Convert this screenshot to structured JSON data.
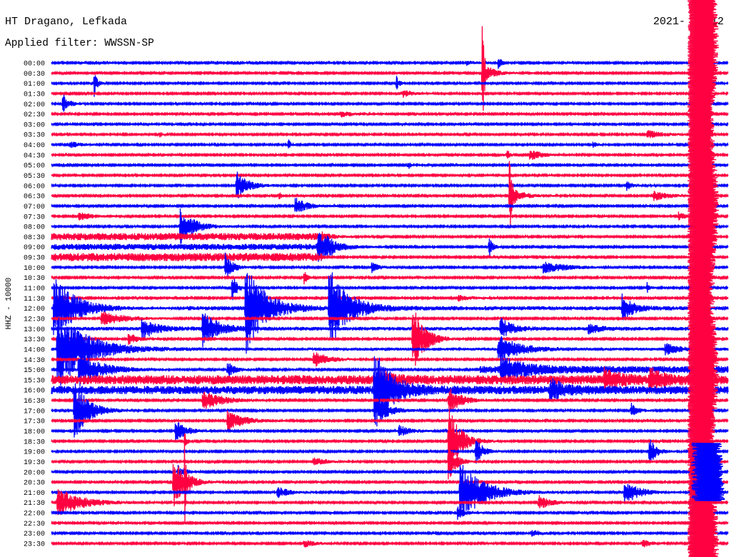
{
  "chart_data": {
    "type": "line",
    "title": "HT Dragano, Lefkada",
    "subtitle": "Applied filter: WWSSN-SP",
    "date_left": "2021-",
    "date_right": "12",
    "ylabel": "HHZ - 10000",
    "row_minutes": 30,
    "trace_colors": [
      "#0000ff",
      "#ff0040"
    ],
    "rows": [
      "00:00",
      "00:30",
      "01:00",
      "01:30",
      "02:00",
      "02:30",
      "03:00",
      "03:30",
      "04:00",
      "04:30",
      "05:00",
      "05:30",
      "06:00",
      "06:30",
      "07:00",
      "07:30",
      "08:00",
      "08:30",
      "09:00",
      "09:30",
      "10:00",
      "10:30",
      "11:00",
      "11:30",
      "12:00",
      "12:30",
      "13:00",
      "13:30",
      "14:00",
      "14:30",
      "15:00",
      "15:30",
      "16:00",
      "16:30",
      "17:00",
      "17:30",
      "18:00",
      "18:30",
      "19:00",
      "19:30",
      "20:00",
      "20:30",
      "21:00",
      "21:30",
      "22:00",
      "22:30",
      "23:00",
      "23:30"
    ],
    "base_noise": 0.08,
    "noise": [
      {
        "row": "08:30",
        "t_start": 0,
        "t_end": 12,
        "level": 0.35
      },
      {
        "row": "09:00",
        "t_start": 0,
        "t_end": 12.5,
        "level": 0.3
      },
      {
        "row": "09:30",
        "t_start": 0,
        "t_end": 12,
        "level": 0.4
      },
      {
        "row": "12:00",
        "t_start": 6,
        "t_end": 30,
        "level": 0.2
      },
      {
        "row": "13:00",
        "t_start": 0,
        "t_end": 30,
        "level": 0.18
      },
      {
        "row": "14:00",
        "t_start": 0,
        "t_end": 30,
        "level": 0.15
      },
      {
        "row": "15:00",
        "t_start": 19,
        "t_end": 30,
        "level": 0.35
      },
      {
        "row": "15:30",
        "t_start": 0,
        "t_end": 30,
        "level": 0.45
      },
      {
        "row": "16:00",
        "t_start": 0,
        "t_end": 30,
        "level": 0.4
      }
    ],
    "events": [
      {
        "row": "00:00",
        "t": 19.8,
        "amp": 0.7,
        "dur": 0.15
      },
      {
        "row": "00:00",
        "t": 18.4,
        "amp": 0.25,
        "dur": 0.3
      },
      {
        "row": "00:30",
        "t": 19.1,
        "amp": 7.0,
        "dur": 0.05
      },
      {
        "row": "00:30",
        "t": 19.1,
        "amp": 1.2,
        "dur": 0.4
      },
      {
        "row": "01:00",
        "t": 1.9,
        "amp": 1.3,
        "dur": 0.12
      },
      {
        "row": "01:00",
        "t": 15.3,
        "amp": 0.7,
        "dur": 0.12
      },
      {
        "row": "01:30",
        "t": 15.6,
        "amp": 0.35,
        "dur": 0.4
      },
      {
        "row": "02:00",
        "t": 0.5,
        "amp": 1.0,
        "dur": 0.25
      },
      {
        "row": "02:30",
        "t": 12.8,
        "amp": 0.3,
        "dur": 0.6
      },
      {
        "row": "03:30",
        "t": 4.8,
        "amp": 0.3,
        "dur": 0.1
      },
      {
        "row": "03:30",
        "t": 26.4,
        "amp": 0.4,
        "dur": 0.7
      },
      {
        "row": "04:00",
        "t": 0.8,
        "amp": 0.3,
        "dur": 0.5
      },
      {
        "row": "04:00",
        "t": 10.5,
        "amp": 0.55,
        "dur": 0.1
      },
      {
        "row": "04:00",
        "t": 24.0,
        "amp": 0.3,
        "dur": 0.2
      },
      {
        "row": "04:30",
        "t": 20.2,
        "amp": 0.85,
        "dur": 0.08
      },
      {
        "row": "04:30",
        "t": 21.2,
        "amp": 0.55,
        "dur": 0.5
      },
      {
        "row": "05:00",
        "t": 15.8,
        "amp": 0.5,
        "dur": 0.1
      },
      {
        "row": "06:00",
        "t": 8.2,
        "amp": 1.4,
        "dur": 0.5
      },
      {
        "row": "06:00",
        "t": 25.5,
        "amp": 0.5,
        "dur": 0.2
      },
      {
        "row": "06:30",
        "t": 10.1,
        "amp": 0.4,
        "dur": 0.1
      },
      {
        "row": "06:30",
        "t": 20.3,
        "amp": 3.7,
        "dur": 0.08
      },
      {
        "row": "06:30",
        "t": 20.3,
        "amp": 1.0,
        "dur": 0.5
      },
      {
        "row": "06:30",
        "t": 26.7,
        "amp": 0.5,
        "dur": 0.6
      },
      {
        "row": "07:00",
        "t": 10.8,
        "amp": 0.85,
        "dur": 0.5
      },
      {
        "row": "07:30",
        "t": 1.2,
        "amp": 0.4,
        "dur": 0.6
      },
      {
        "row": "07:30",
        "t": 27.8,
        "amp": 0.4,
        "dur": 0.3
      },
      {
        "row": "08:00",
        "t": 5.7,
        "amp": 1.75,
        "dur": 0.6
      },
      {
        "row": "08:30",
        "t": 12.0,
        "amp": 0.45,
        "dur": 0.5
      },
      {
        "row": "09:00",
        "t": 11.8,
        "amp": 1.5,
        "dur": 0.7
      },
      {
        "row": "09:00",
        "t": 19.4,
        "amp": 1.0,
        "dur": 0.15
      },
      {
        "row": "10:00",
        "t": 7.7,
        "amp": 1.4,
        "dur": 0.3
      },
      {
        "row": "10:00",
        "t": 14.2,
        "amp": 0.55,
        "dur": 0.3
      },
      {
        "row": "10:00",
        "t": 21.8,
        "amp": 0.55,
        "dur": 1.0
      },
      {
        "row": "10:30",
        "t": 11.2,
        "amp": 1.0,
        "dur": 0.1
      },
      {
        "row": "11:00",
        "t": 8.0,
        "amp": 1.4,
        "dur": 0.2
      },
      {
        "row": "11:00",
        "t": 26.4,
        "amp": 0.55,
        "dur": 0.1
      },
      {
        "row": "11:30",
        "t": 18.0,
        "amp": 0.3,
        "dur": 0.6
      },
      {
        "row": "12:00",
        "t": 0.1,
        "amp": 3.1,
        "dur": 1.0
      },
      {
        "row": "12:00",
        "t": 8.6,
        "amp": 4.5,
        "dur": 0.8
      },
      {
        "row": "12:00",
        "t": 12.3,
        "amp": 4.0,
        "dur": 0.8
      },
      {
        "row": "12:00",
        "t": 25.3,
        "amp": 1.4,
        "dur": 0.4
      },
      {
        "row": "12:30",
        "t": 2.2,
        "amp": 0.7,
        "dur": 1.0
      },
      {
        "row": "13:00",
        "t": 4.0,
        "amp": 1.0,
        "dur": 0.6
      },
      {
        "row": "13:00",
        "t": 6.7,
        "amp": 1.75,
        "dur": 0.6
      },
      {
        "row": "13:00",
        "t": 19.9,
        "amp": 1.0,
        "dur": 0.5
      },
      {
        "row": "13:00",
        "t": 23.8,
        "amp": 0.55,
        "dur": 0.4
      },
      {
        "row": "13:30",
        "t": 3.4,
        "amp": 0.55,
        "dur": 0.5
      },
      {
        "row": "13:30",
        "t": 16.0,
        "amp": 3.5,
        "dur": 0.5
      },
      {
        "row": "14:00",
        "t": 0.25,
        "amp": 4.0,
        "dur": 1.2
      },
      {
        "row": "14:00",
        "t": 19.8,
        "amp": 1.4,
        "dur": 0.8
      },
      {
        "row": "14:00",
        "t": 27.2,
        "amp": 0.55,
        "dur": 0.5
      },
      {
        "row": "14:30",
        "t": 11.6,
        "amp": 0.85,
        "dur": 0.6
      },
      {
        "row": "15:00",
        "t": 1.2,
        "amp": 1.75,
        "dur": 1.0
      },
      {
        "row": "15:00",
        "t": 7.8,
        "amp": 0.85,
        "dur": 0.3
      },
      {
        "row": "15:00",
        "t": 19.9,
        "amp": 1.25,
        "dur": 0.9
      },
      {
        "row": "15:30",
        "t": 14.5,
        "amp": 0.85,
        "dur": 0.5
      },
      {
        "row": "15:30",
        "t": 24.5,
        "amp": 1.0,
        "dur": 0.6
      },
      {
        "row": "15:30",
        "t": 26.5,
        "amp": 1.0,
        "dur": 0.6
      },
      {
        "row": "16:00",
        "t": 14.3,
        "amp": 4.0,
        "dur": 0.7
      },
      {
        "row": "16:00",
        "t": 22.1,
        "amp": 1.0,
        "dur": 0.6
      },
      {
        "row": "16:30",
        "t": 6.7,
        "amp": 1.0,
        "dur": 0.8
      },
      {
        "row": "16:30",
        "t": 17.6,
        "amp": 1.4,
        "dur": 0.5
      },
      {
        "row": "17:00",
        "t": 1.0,
        "amp": 3.0,
        "dur": 0.6
      },
      {
        "row": "17:00",
        "t": 14.5,
        "amp": 1.25,
        "dur": 0.5
      },
      {
        "row": "17:00",
        "t": 25.7,
        "amp": 0.7,
        "dur": 0.3
      },
      {
        "row": "17:30",
        "t": 7.8,
        "amp": 1.0,
        "dur": 0.7
      },
      {
        "row": "18:00",
        "t": 5.5,
        "amp": 1.25,
        "dur": 0.4
      },
      {
        "row": "18:00",
        "t": 15.4,
        "amp": 0.55,
        "dur": 0.5
      },
      {
        "row": "18:30",
        "t": 5.9,
        "amp": 1.0,
        "dur": 0.1
      },
      {
        "row": "18:30",
        "t": 17.6,
        "amp": 3.5,
        "dur": 0.5
      },
      {
        "row": "19:00",
        "t": 18.8,
        "amp": 1.4,
        "dur": 0.3
      },
      {
        "row": "19:00",
        "t": 26.5,
        "amp": 1.4,
        "dur": 0.3
      },
      {
        "row": "19:30",
        "t": 11.6,
        "amp": 0.4,
        "dur": 0.6
      },
      {
        "row": "19:30",
        "t": 17.6,
        "amp": 2.1,
        "dur": 0.3
      },
      {
        "row": "20:00",
        "t": 5.6,
        "amp": 0.7,
        "dur": 0.3
      },
      {
        "row": "20:30",
        "t": 5.4,
        "amp": 2.5,
        "dur": 0.5
      },
      {
        "row": "20:30",
        "t": 5.9,
        "amp": 4.0,
        "dur": 0.08
      },
      {
        "row": "21:00",
        "t": 10.0,
        "amp": 0.55,
        "dur": 0.5
      },
      {
        "row": "21:00",
        "t": 18.1,
        "amp": 3.0,
        "dur": 1.0
      },
      {
        "row": "21:00",
        "t": 25.4,
        "amp": 1.25,
        "dur": 0.6
      },
      {
        "row": "21:30",
        "t": 0.25,
        "amp": 1.5,
        "dur": 1.0
      },
      {
        "row": "21:30",
        "t": 21.6,
        "amp": 0.7,
        "dur": 0.5
      },
      {
        "row": "22:00",
        "t": 18.0,
        "amp": 0.7,
        "dur": 0.3
      },
      {
        "row": "23:00",
        "t": 21.3,
        "amp": 0.35,
        "dur": 0.4
      },
      {
        "row": "23:30",
        "t": 11.2,
        "amp": 0.35,
        "dur": 0.5
      },
      {
        "row": "23:30",
        "t": 26.2,
        "amp": 0.4,
        "dur": 0.4
      }
    ],
    "saturated": [
      {
        "t_start": 28.2,
        "t_end": 29.5,
        "color": "#ff0040"
      },
      {
        "t_start": 28.3,
        "t_end": 29.8,
        "color": "#0000ff",
        "row_from": "19:00",
        "row_to": "21:00"
      }
    ]
  }
}
